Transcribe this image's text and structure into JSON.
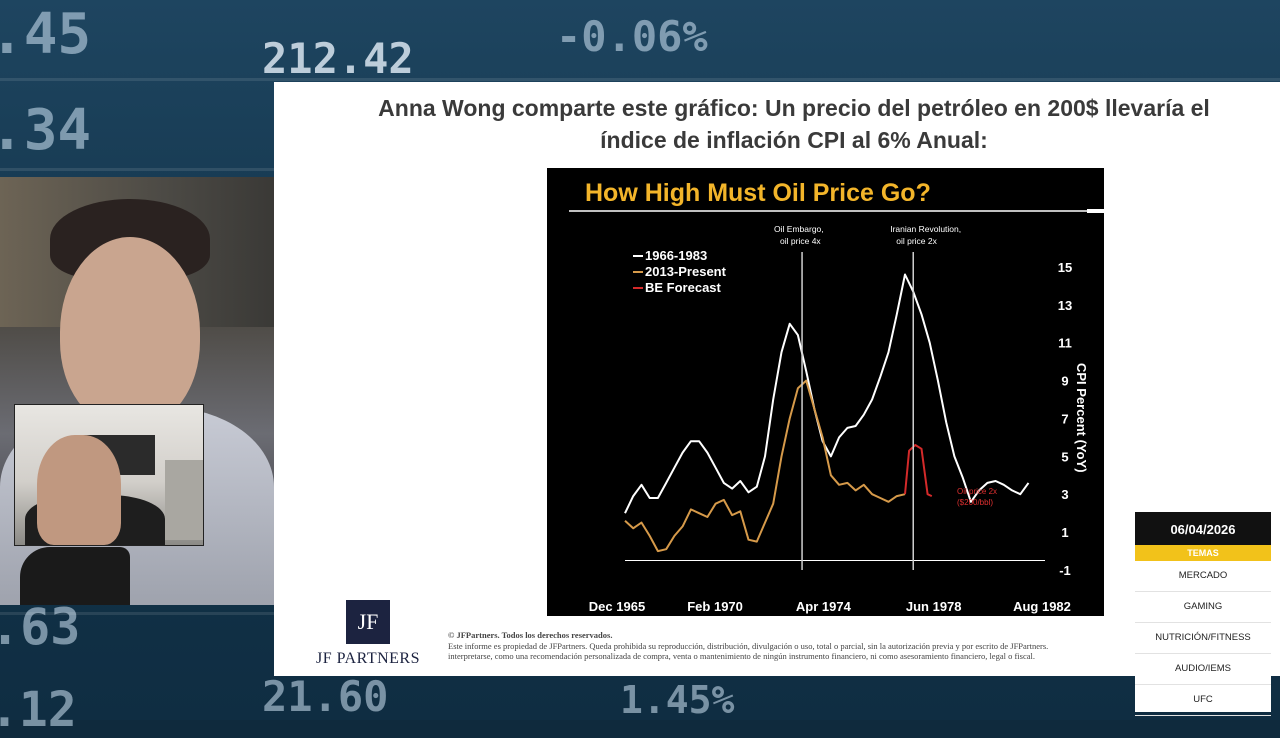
{
  "background_ticker": [
    ".45",
    ".34",
    "212.42",
    "-0.06%",
    ".63",
    "21.60",
    ".12",
    "1.45%"
  ],
  "slide": {
    "title_line1": "Anna Wong comparte este gráfico: Un precio del petróleo en 200$ llevaría el",
    "title_line2": "índice de inflación CPI al 6% Anual:",
    "logo_mark": "JF",
    "logo_name": "JF PARTNERS",
    "disclaimer_line1": "© JFPartners. Todos los derechos reservados.",
    "disclaimer_line2": "Este informe es propiedad de JFPartners. Queda prohibida su reproducción, distribución, divulgación o uso, total o parcial, sin la autorización previa y por escrito de JFPartners.",
    "disclaimer_line3": "interpretarse, como una recomendación personalizada de compra, venta o mantenimiento de ningún instrumento financiero, ni como asesoramiento financiero, legal o fiscal."
  },
  "chart_data": {
    "type": "line",
    "title": "How High Must Oil Price Go?",
    "ylabel": "CPI Percent (YoY)",
    "ylim": [
      -1,
      16
    ],
    "yticks": [
      "15",
      "13",
      "11",
      "9",
      "7",
      "5",
      "3",
      "1",
      "-1"
    ],
    "xtick_labels": [
      "Dec 1965",
      "Feb 1970",
      "Apr 1974",
      "Jun 1978",
      "Aug 1982"
    ],
    "x_range_months": [
      0,
      204
    ],
    "legend_placement": "top-left",
    "legend": [
      "1966-1983",
      "2013-Present",
      "BE Forecast"
    ],
    "colors": {
      "s1966": "#ffffff",
      "s2013": "#d69a4a",
      "forecast": "#d42a2a"
    },
    "annotations": [
      {
        "text": "Oil Embargo,",
        "text2": "oil price 4x",
        "x": 86
      },
      {
        "text": "Iranian Revolution,",
        "text2": "oil price 2x",
        "x": 140
      }
    ],
    "forecast_label": [
      "Oil price 2x",
      "($200/bbl)"
    ],
    "series": [
      {
        "name": "1966-1983",
        "color": "#ffffff",
        "x": [
          0,
          4,
          8,
          12,
          16,
          20,
          24,
          28,
          32,
          36,
          40,
          44,
          48,
          52,
          56,
          60,
          64,
          68,
          72,
          76,
          80,
          84,
          88,
          92,
          96,
          100,
          104,
          108,
          112,
          116,
          120,
          124,
          128,
          132,
          136,
          140,
          144,
          148,
          152,
          156,
          160,
          164,
          168,
          172,
          176,
          180,
          184,
          188,
          192,
          196
        ],
        "y": [
          2.0,
          2.9,
          3.5,
          2.8,
          2.8,
          3.6,
          4.4,
          5.2,
          5.8,
          5.8,
          5.2,
          4.4,
          3.6,
          3.3,
          3.7,
          3.1,
          3.4,
          5.0,
          8.0,
          10.5,
          12.0,
          11.4,
          9.5,
          7.5,
          5.8,
          5.0,
          6.0,
          6.5,
          6.6,
          7.2,
          8.0,
          9.2,
          10.5,
          12.5,
          14.6,
          13.7,
          12.5,
          11.0,
          9.0,
          6.8,
          5.0,
          3.9,
          2.6,
          3.2,
          3.6,
          3.7,
          3.5,
          3.2,
          3.0,
          3.6
        ]
      },
      {
        "name": "2013-Present",
        "color": "#d69a4a",
        "x": [
          0,
          4,
          8,
          12,
          16,
          20,
          24,
          28,
          32,
          36,
          40,
          44,
          48,
          52,
          56,
          60,
          64,
          68,
          72,
          76,
          80,
          84,
          88,
          92,
          96,
          100,
          104,
          108,
          112,
          116,
          120,
          124,
          128,
          132,
          136
        ],
        "y": [
          1.6,
          1.2,
          1.5,
          0.8,
          0.0,
          0.1,
          0.8,
          1.3,
          2.2,
          2.0,
          1.8,
          2.5,
          2.7,
          1.9,
          2.1,
          0.6,
          0.5,
          1.5,
          2.5,
          5.0,
          7.0,
          8.6,
          9.0,
          7.5,
          6.0,
          4.0,
          3.5,
          3.6,
          3.2,
          3.5,
          3.0,
          2.8,
          2.6,
          2.9,
          3.0
        ]
      },
      {
        "name": "BE Forecast",
        "color": "#d42a2a",
        "x": [
          136,
          138,
          141,
          144,
          147,
          149
        ],
        "y": [
          3.0,
          5.3,
          5.6,
          5.4,
          3.0,
          2.9
        ]
      }
    ]
  },
  "topics": {
    "date": "06/04/2026",
    "header": "TEMAS",
    "items": [
      "MERCADO",
      "GAMING",
      "NUTRICIÓN/FITNESS",
      "AUDIO/IEMS",
      "UFC"
    ]
  }
}
